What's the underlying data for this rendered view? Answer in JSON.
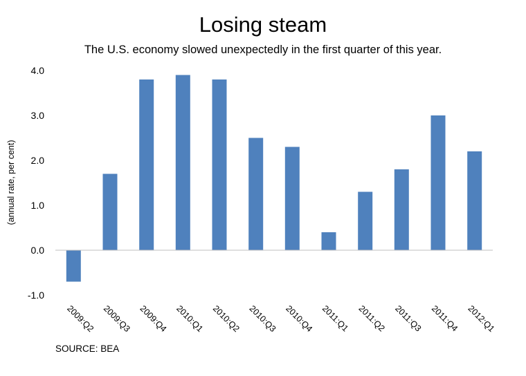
{
  "chart_data": {
    "type": "bar",
    "title": "Losing steam",
    "subtitle": "The U.S. economy slowed unexpectedly in the first quarter of this year.",
    "ylabel": "(annual rate, per cent)",
    "xlabel": "",
    "source": "SOURCE: BEA",
    "categories": [
      "2009:Q2",
      "2009:Q3",
      "2009:Q4",
      "2010:Q1",
      "2010:Q2",
      "2010:Q3",
      "2010:Q4",
      "2011:Q1",
      "2011:Q2",
      "2011:Q3",
      "2011:Q4",
      "2012:Q1"
    ],
    "values": [
      -0.7,
      1.7,
      3.8,
      3.9,
      3.8,
      2.5,
      2.3,
      0.4,
      1.3,
      1.8,
      3.0,
      2.2
    ],
    "ylim": [
      -1.0,
      4.0
    ],
    "yticks": [
      "4.0",
      "3.0",
      "2.0",
      "1.0",
      "0.0",
      "-1.0"
    ],
    "bar_color": "#4f81bd",
    "grid": false,
    "legend": "none"
  }
}
